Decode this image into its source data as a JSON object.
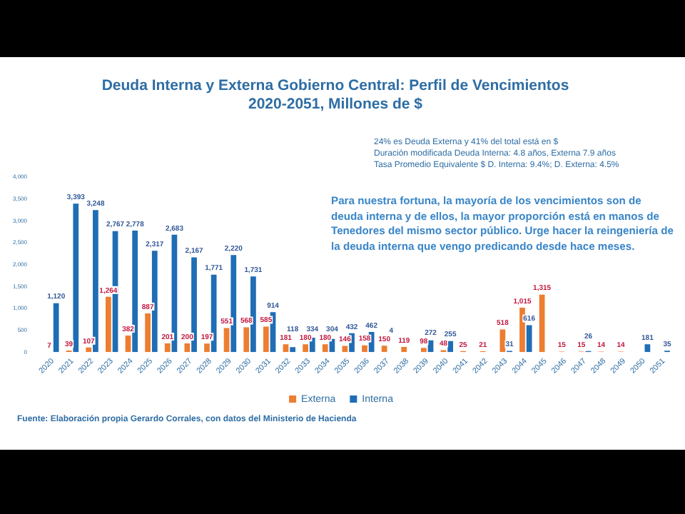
{
  "chart_data": {
    "type": "bar",
    "title": "Deuda Interna y Externa Gobierno Central: Perfil de Vencimientos\n2020-2051, Millones de $",
    "categories": [
      "2020",
      "2021",
      "2022",
      "2023",
      "2024",
      "2025",
      "2026",
      "2027",
      "2028",
      "2029",
      "2030",
      "2031",
      "2032",
      "2033",
      "2034",
      "2035",
      "2036",
      "2037",
      "2038",
      "2039",
      "2040",
      "2041",
      "2042",
      "2043",
      "2044",
      "2045",
      "2046",
      "2047",
      "2048",
      "2049",
      "2050",
      "2051"
    ],
    "series": [
      {
        "name": "Externa",
        "color": "#ed7d31",
        "values": [
          7,
          39,
          107,
          1264,
          382,
          887,
          201,
          200,
          197,
          551,
          568,
          585,
          181,
          180,
          180,
          146,
          158,
          150,
          119,
          98,
          48,
          25,
          21,
          518,
          1015,
          1315,
          15,
          15,
          14,
          14,
          null,
          null
        ],
        "value_labels": [
          "7",
          "39",
          "107",
          "1,264",
          "382",
          "887",
          "201",
          "200",
          "197",
          "551",
          "568",
          "585",
          "181",
          "180",
          "180",
          "146",
          "158",
          "150",
          "119",
          "98",
          "48",
          "25",
          "21",
          "518",
          "1,015",
          "1,315",
          "15",
          "15",
          "14",
          "14",
          null,
          null
        ]
      },
      {
        "name": "Interna",
        "color": "#1f6db5",
        "values": [
          1120,
          3393,
          3248,
          2767,
          2778,
          2317,
          2683,
          2167,
          1771,
          2220,
          1731,
          914,
          118,
          334,
          304,
          432,
          462,
          4,
          null,
          272,
          255,
          null,
          null,
          31,
          616,
          null,
          null,
          26,
          null,
          null,
          181,
          35
        ],
        "value_labels": [
          "1,120",
          "3,393",
          "3,248",
          "2,767",
          "2,778",
          "2,317",
          "2,683",
          "2,167",
          "1,771",
          "2,220",
          "1,731",
          "914",
          "118",
          "334",
          "304",
          "432",
          "462",
          "4",
          null,
          "272",
          "255",
          null,
          null,
          "31",
          "616",
          null,
          null,
          "26",
          null,
          null,
          "181",
          "35"
        ]
      }
    ],
    "ylim": [
      0,
      4000
    ],
    "yticks": [
      0,
      {
        "value": 500,
        "label": "500"
      },
      {
        "value": 1000,
        "label": "1,000"
      },
      {
        "value": 1500,
        "label": "1,500"
      },
      {
        "value": 2000,
        "label": "2,000"
      },
      {
        "value": 2500,
        "label": "2,500"
      },
      {
        "value": 3000,
        "label": "3,000"
      },
      {
        "value": 3500,
        "label": "3,500"
      },
      {
        "value": 4000,
        "label": "4,000"
      }
    ],
    "legend": "bottom",
    "annotations": [
      "24% es Deuda Externa y 41% del total está en $\nDuración modificada Deuda Interna: 4.8 años, Externa 7.9 años\nTasa Promedio Equivalente $ D. Interna: 9.4%; D. Externa: 4.5%",
      "Para nuestra fortuna, la mayoría de los vencimientos son de deuda interna y de ellos, la mayor proporción está en manos de Tenedores del mismo sector público. Urge hacer la reingeniería de la deuda interna que vengo predicando desde hace meses.",
      "Fuente: Elaboración propia Gerardo Corrales, con datos del Ministerio de Hacienda"
    ]
  }
}
